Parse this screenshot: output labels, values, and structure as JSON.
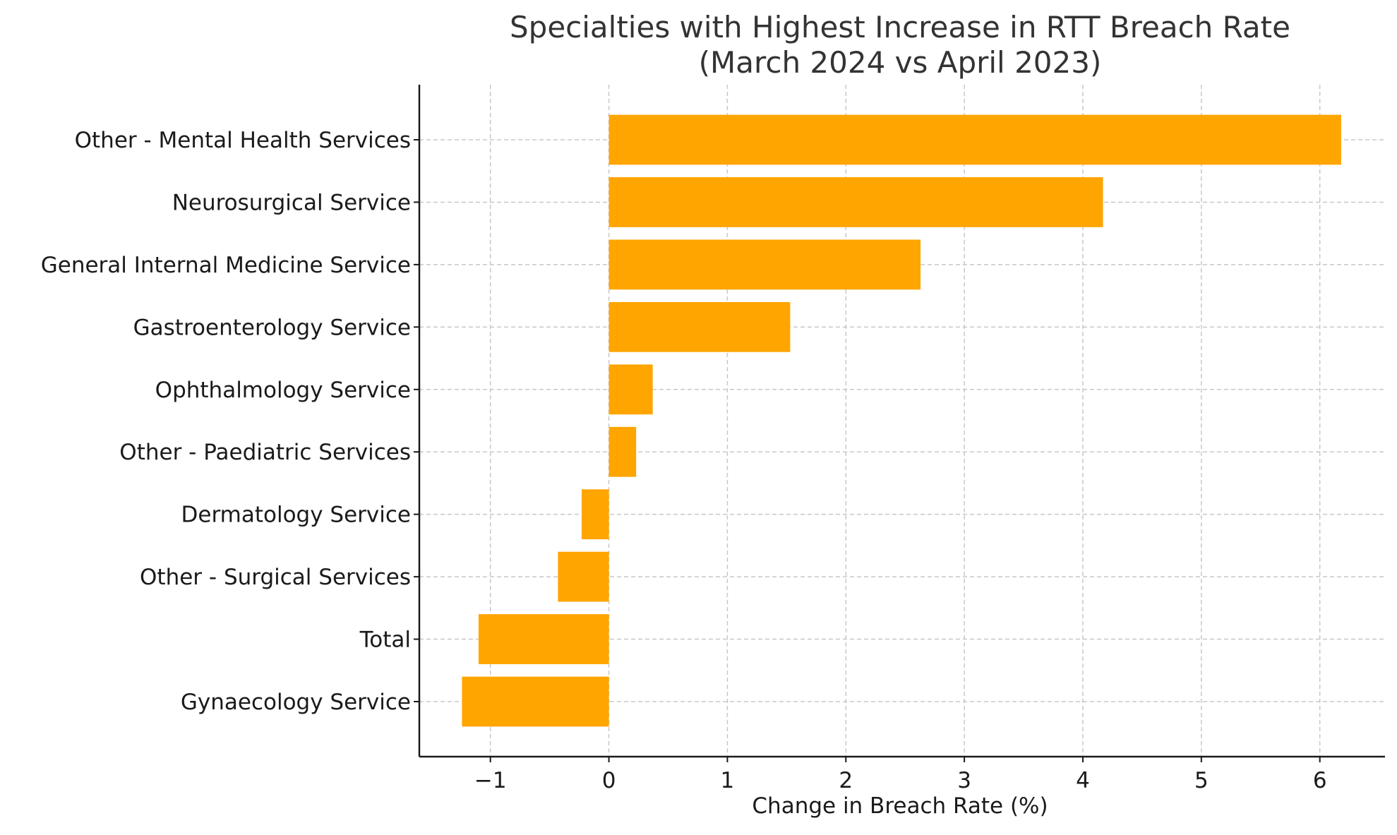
{
  "chart_data": {
    "type": "bar",
    "orientation": "horizontal",
    "title_line1": "Specialties with Highest Increase in RTT Breach Rate",
    "title_line2": "(March 2024 vs April 2023)",
    "xlabel": "Change in Breach Rate (%)",
    "ylabel": "",
    "categories": [
      "Other - Mental Health Services",
      "Neurosurgical Service",
      "General Internal Medicine Service",
      "Gastroenterology Service",
      "Ophthalmology Service",
      "Other - Paediatric Services",
      "Dermatology Service",
      "Other - Surgical Services",
      "Total",
      "Gynaecology Service"
    ],
    "values": [
      6.18,
      4.17,
      2.63,
      1.53,
      0.37,
      0.23,
      -0.23,
      -0.43,
      -1.1,
      -1.24
    ],
    "xlim": [
      -1.6,
      6.55
    ],
    "xticks": [
      -1,
      0,
      1,
      2,
      3,
      4,
      5,
      6
    ],
    "xtick_labels": [
      "−1",
      "0",
      "1",
      "2",
      "3",
      "4",
      "5",
      "6"
    ],
    "grid": true,
    "bar_color": "#FFA500"
  }
}
